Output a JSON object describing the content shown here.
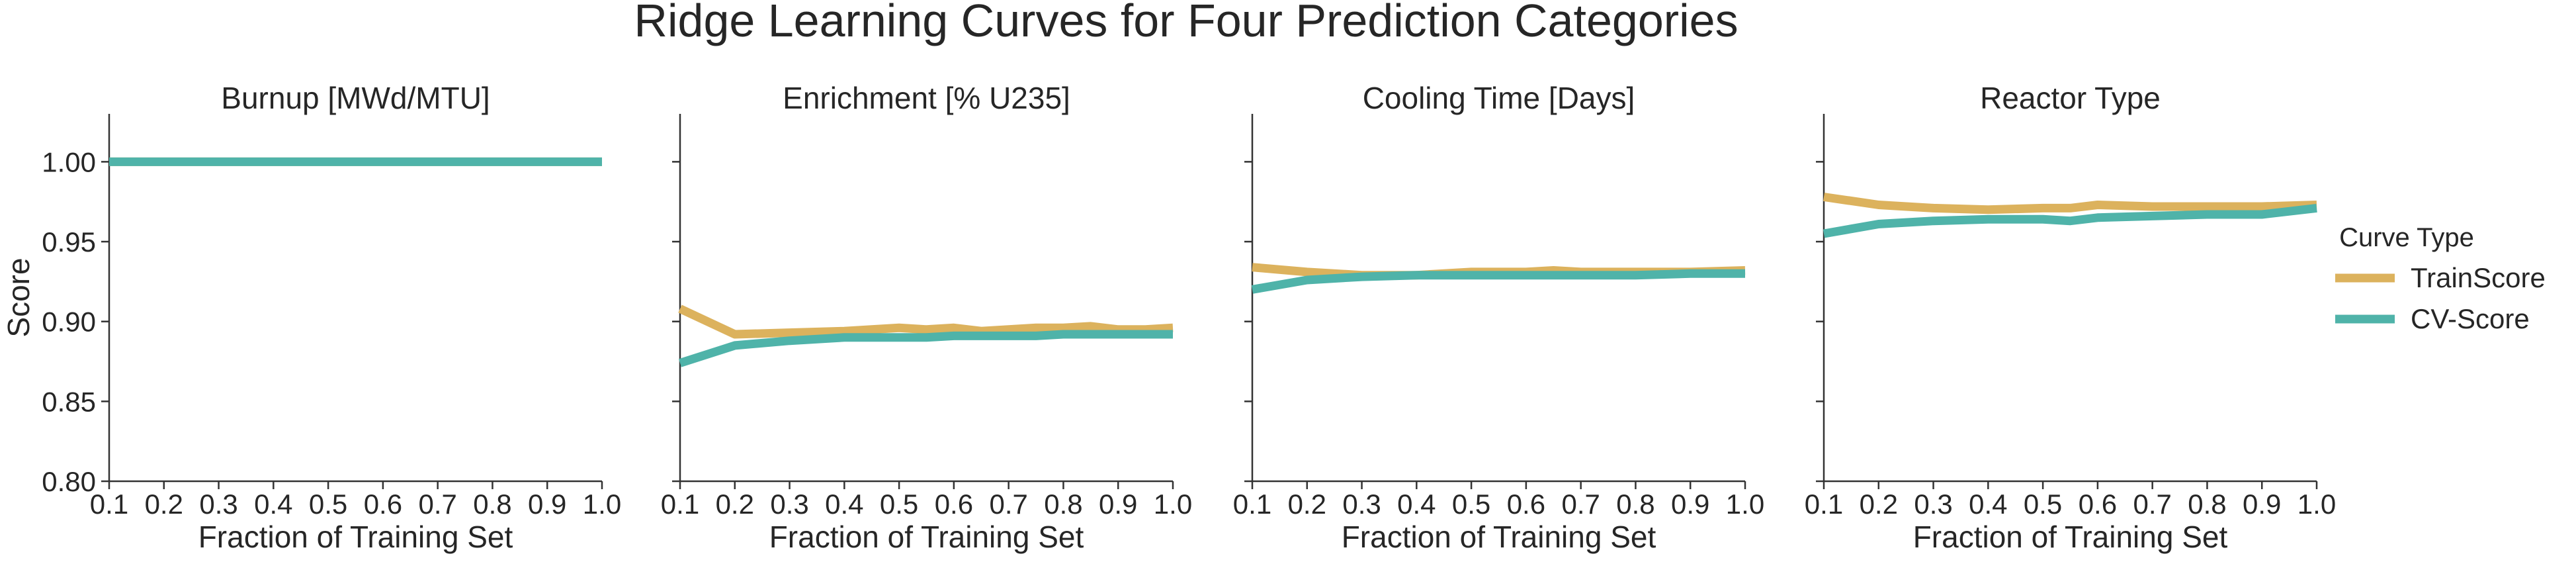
{
  "title": "Ridge Learning Curves for Four Prediction Categories",
  "legend": {
    "title": "Curve Type",
    "entries": [
      {
        "name": "TrainScore",
        "color": "#dcb25d"
      },
      {
        "name": "CV-Score",
        "color": "#4fb3a9"
      }
    ],
    "placement": "right"
  },
  "chart_data": [
    {
      "type": "line",
      "title": "Burnup [MWd/MTU]",
      "xlabel": "Fraction of Training Set",
      "ylabel": "Score",
      "xlim": [
        0.1,
        1.0
      ],
      "ylim": [
        0.8,
        1.03
      ],
      "xticks": [
        "0.1",
        "0.2",
        "0.3",
        "0.4",
        "0.5",
        "0.6",
        "0.7",
        "0.8",
        "0.9",
        "1.0"
      ],
      "yticks": [
        "0.80",
        "0.85",
        "0.90",
        "0.95",
        "1.00"
      ],
      "grid": false,
      "x": [
        0.1,
        0.2,
        0.3,
        0.4,
        0.5,
        0.6,
        0.7,
        0.8,
        0.9,
        1.0
      ],
      "series": [
        {
          "name": "TrainScore",
          "values": [
            1.0,
            1.0,
            1.0,
            1.0,
            1.0,
            1.0,
            1.0,
            1.0,
            1.0,
            1.0
          ]
        },
        {
          "name": "CV-Score",
          "values": [
            1.0,
            1.0,
            1.0,
            1.0,
            1.0,
            1.0,
            1.0,
            1.0,
            1.0,
            1.0
          ]
        }
      ]
    },
    {
      "type": "line",
      "title": "Enrichment [% U235]",
      "xlabel": "Fraction of Training Set",
      "ylabel": "",
      "xlim": [
        0.1,
        1.0
      ],
      "ylim": [
        0.8,
        1.03
      ],
      "xticks": [
        "0.1",
        "0.2",
        "0.3",
        "0.4",
        "0.5",
        "0.6",
        "0.7",
        "0.8",
        "0.9",
        "1.0"
      ],
      "yticks": [],
      "grid": false,
      "x": [
        0.1,
        0.2,
        0.3,
        0.4,
        0.5,
        0.55,
        0.6,
        0.65,
        0.7,
        0.75,
        0.8,
        0.85,
        0.9,
        0.95,
        1.0
      ],
      "series": [
        {
          "name": "TrainScore",
          "values": [
            0.908,
            0.892,
            0.893,
            0.894,
            0.896,
            0.895,
            0.896,
            0.894,
            0.895,
            0.896,
            0.896,
            0.897,
            0.895,
            0.895,
            0.896
          ]
        },
        {
          "name": "CV-Score",
          "values": [
            0.874,
            0.885,
            0.888,
            0.89,
            0.89,
            0.89,
            0.891,
            0.891,
            0.891,
            0.891,
            0.892,
            0.892,
            0.892,
            0.892,
            0.892
          ]
        }
      ]
    },
    {
      "type": "line",
      "title": "Cooling Time [Days]",
      "xlabel": "Fraction of Training Set",
      "ylabel": "",
      "xlim": [
        0.1,
        1.0
      ],
      "ylim": [
        0.8,
        1.03
      ],
      "xticks": [
        "0.1",
        "0.2",
        "0.3",
        "0.4",
        "0.5",
        "0.6",
        "0.7",
        "0.8",
        "0.9",
        "1.0"
      ],
      "yticks": [],
      "grid": false,
      "x": [
        0.1,
        0.2,
        0.3,
        0.4,
        0.5,
        0.6,
        0.65,
        0.7,
        0.8,
        0.9,
        1.0
      ],
      "series": [
        {
          "name": "TrainScore",
          "values": [
            0.934,
            0.931,
            0.929,
            0.929,
            0.931,
            0.931,
            0.932,
            0.931,
            0.931,
            0.931,
            0.932
          ]
        },
        {
          "name": "CV-Score",
          "values": [
            0.92,
            0.926,
            0.928,
            0.929,
            0.929,
            0.929,
            0.929,
            0.929,
            0.929,
            0.93,
            0.93
          ]
        }
      ]
    },
    {
      "type": "line",
      "title": "Reactor Type",
      "xlabel": "Fraction of Training Set",
      "ylabel": "",
      "xlim": [
        0.1,
        1.0
      ],
      "ylim": [
        0.8,
        1.03
      ],
      "xticks": [
        "0.1",
        "0.2",
        "0.3",
        "0.4",
        "0.5",
        "0.6",
        "0.7",
        "0.8",
        "0.9",
        "1.0"
      ],
      "yticks": [],
      "grid": false,
      "x": [
        0.1,
        0.2,
        0.3,
        0.4,
        0.5,
        0.55,
        0.6,
        0.7,
        0.8,
        0.9,
        1.0
      ],
      "series": [
        {
          "name": "TrainScore",
          "values": [
            0.978,
            0.973,
            0.971,
            0.97,
            0.971,
            0.971,
            0.973,
            0.972,
            0.972,
            0.972,
            0.973
          ]
        },
        {
          "name": "CV-Score",
          "values": [
            0.955,
            0.961,
            0.963,
            0.964,
            0.964,
            0.963,
            0.965,
            0.966,
            0.967,
            0.967,
            0.971
          ]
        }
      ]
    }
  ]
}
